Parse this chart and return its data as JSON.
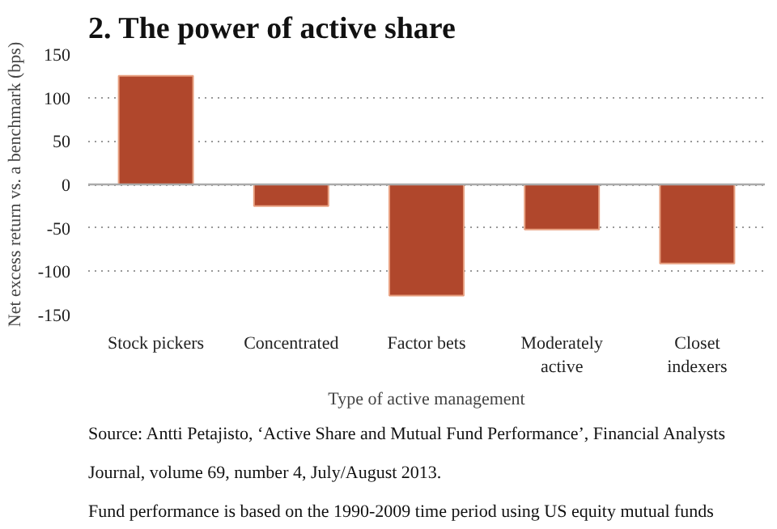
{
  "chart_data": {
    "type": "bar",
    "title": "2. The power of active share",
    "xlabel": "Type of active management",
    "ylabel": "Net excess return vs. a benchmark (bps)",
    "categories": [
      "Stock pickers",
      "Concentrated",
      "Factor bets",
      "Moderately active",
      "Closet indexers"
    ],
    "values": [
      125,
      -25,
      -128,
      -52,
      -91
    ],
    "color": "#b0472c",
    "ylim": [
      -150,
      150
    ],
    "yticks": [
      -150,
      -100,
      -50,
      0,
      50,
      100,
      150
    ],
    "grid": "y",
    "annotations": [
      "Source: Antti Petajisto, ‘Active Share and Mutual Fund Performance’, Financial Analysts Journal, volume 69, number 4, July/August 2013.",
      "Fund performance is based on the 1990-2009 time period using US equity mutual funds"
    ]
  }
}
